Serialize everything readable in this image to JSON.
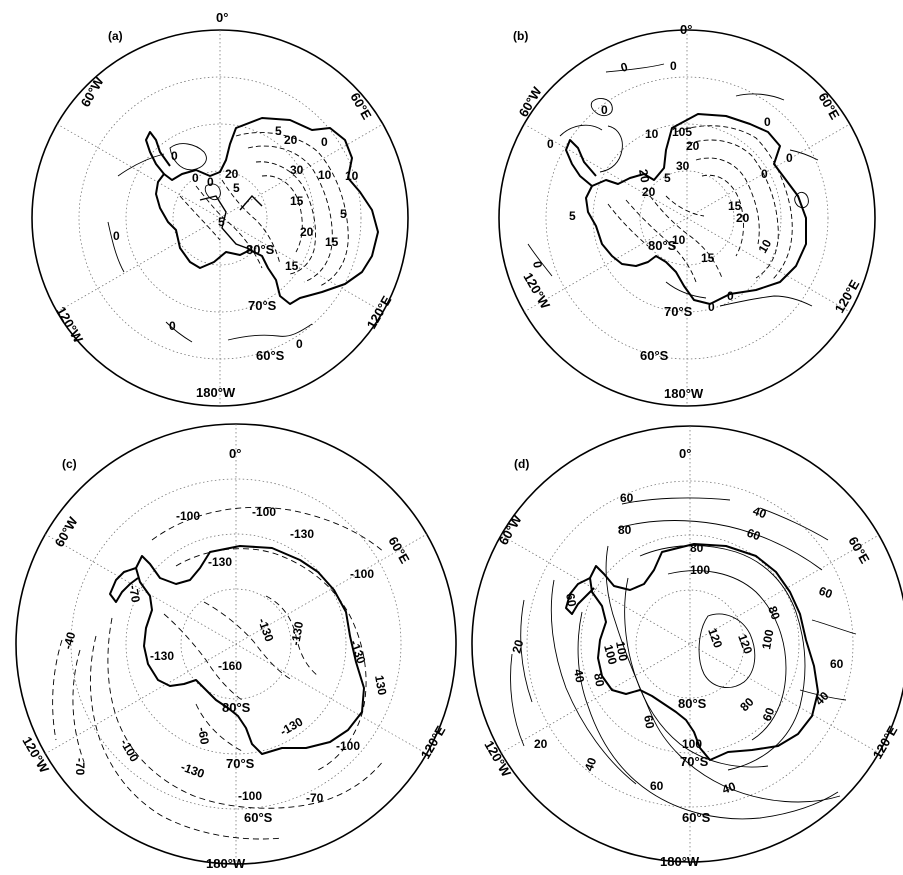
{
  "panels": [
    {
      "label": "(a)",
      "lon_labels": {
        "top": "0°",
        "upper_left": "60°W",
        "upper_right": "60°E",
        "lower_left": "120°W",
        "lower_right": "120°E",
        "bottom": "180°W"
      },
      "lat_labels": [
        "80°S",
        "70°S",
        "60°S"
      ],
      "contour_labels": [
        "5",
        "20",
        "0",
        "10",
        "15",
        "30",
        "20",
        "20",
        "5",
        "15",
        "10",
        "0",
        "5",
        "0",
        "0",
        "0",
        "0",
        "0",
        "15",
        "5"
      ]
    },
    {
      "label": "(b)",
      "lon_labels": {
        "top": "0°",
        "upper_left": "60°W",
        "upper_right": "60°E",
        "lower_left": "120°W",
        "lower_right": "120°E",
        "bottom": "180°W"
      },
      "lat_labels": [
        "80°S",
        "70°S",
        "60°S"
      ],
      "contour_labels": [
        "0",
        "0",
        "0",
        "0",
        "10",
        "105",
        "20",
        "30",
        "20",
        "15",
        "20",
        "20",
        "15",
        "10",
        "0",
        "10",
        "5",
        "5",
        "0",
        "0",
        "0",
        "0",
        "0"
      ]
    },
    {
      "label": "(c)",
      "lon_labels": {
        "top": "0°",
        "upper_left": "60°W",
        "upper_right": "60°E",
        "lower_left": "120°W",
        "lower_right": "120°E",
        "bottom": "180°W"
      },
      "lat_labels": [
        "80°S",
        "70°S",
        "60°S"
      ],
      "contour_labels": [
        "-100",
        "-100",
        "-130",
        "-130",
        "-100",
        "-70",
        "-40",
        "-130",
        "-130",
        "-130",
        "-130",
        "-160",
        "-100",
        "-130",
        "-100",
        "-70",
        "-70",
        "-100",
        "-60",
        "130",
        "-130"
      ]
    },
    {
      "label": "(d)",
      "lon_labels": {
        "top": "0°",
        "upper_left": "60°W",
        "upper_right": "60°E",
        "lower_left": "120°W",
        "lower_right": "120°E",
        "bottom": "180°W"
      },
      "lat_labels": [
        "80°S",
        "70°S",
        "60°S"
      ],
      "contour_labels": [
        "60",
        "40",
        "80",
        "60",
        "80",
        "60",
        "100",
        "80",
        "120",
        "120",
        "100",
        "60",
        "60",
        "80",
        "100",
        "100",
        "60",
        "40",
        "40",
        "20",
        "20",
        "40",
        "80",
        "100",
        "60",
        "40",
        "60"
      ]
    }
  ]
}
